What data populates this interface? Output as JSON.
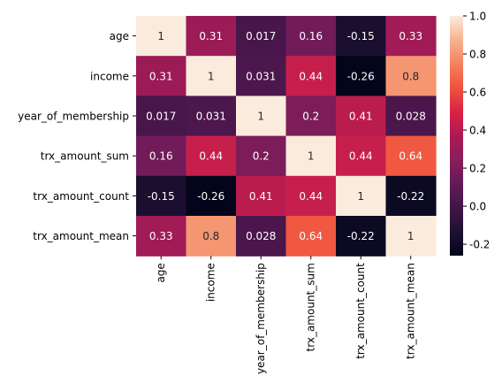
{
  "chart_data": {
    "type": "heatmap",
    "colormap": "rocket",
    "rows": [
      "age",
      "income",
      "year_of_membership",
      "trx_amount_sum",
      "trx_amount_count",
      "trx_amount_mean"
    ],
    "columns": [
      "age",
      "income",
      "year_of_membership",
      "trx_amount_sum",
      "trx_amount_count",
      "trx_amount_mean"
    ],
    "values": [
      [
        1,
        0.31,
        0.017,
        0.16,
        -0.15,
        0.33
      ],
      [
        0.31,
        1,
        0.031,
        0.44,
        -0.26,
        0.8
      ],
      [
        0.017,
        0.031,
        1,
        0.2,
        0.41,
        0.028
      ],
      [
        0.16,
        0.44,
        0.2,
        1,
        0.44,
        0.64
      ],
      [
        -0.15,
        -0.26,
        0.41,
        0.44,
        1,
        -0.22
      ],
      [
        0.33,
        0.8,
        0.028,
        0.64,
        -0.22,
        1
      ]
    ],
    "annotations": [
      [
        "1",
        "0.31",
        "0.017",
        "0.16",
        "-0.15",
        "0.33"
      ],
      [
        "0.31",
        "1",
        "0.031",
        "0.44",
        "-0.26",
        "0.8"
      ],
      [
        "0.017",
        "0.031",
        "1",
        "0.2",
        "0.41",
        "0.028"
      ],
      [
        "0.16",
        "0.44",
        "0.2",
        "1",
        "0.44",
        "0.64"
      ],
      [
        "-0.15",
        "-0.26",
        "0.41",
        "0.44",
        "1",
        "-0.22"
      ],
      [
        "0.33",
        "0.8",
        "0.028",
        "0.64",
        "-0.22",
        "1"
      ]
    ],
    "colorbar": {
      "min": -0.26,
      "max": 1,
      "ticks": [
        1.0,
        0.8,
        0.6,
        0.4,
        0.2,
        0.0,
        -0.2
      ],
      "tick_labels": [
        "1.0",
        "0.8",
        "0.6",
        "0.4",
        "0.2",
        "0.0",
        "-0.2"
      ]
    }
  }
}
